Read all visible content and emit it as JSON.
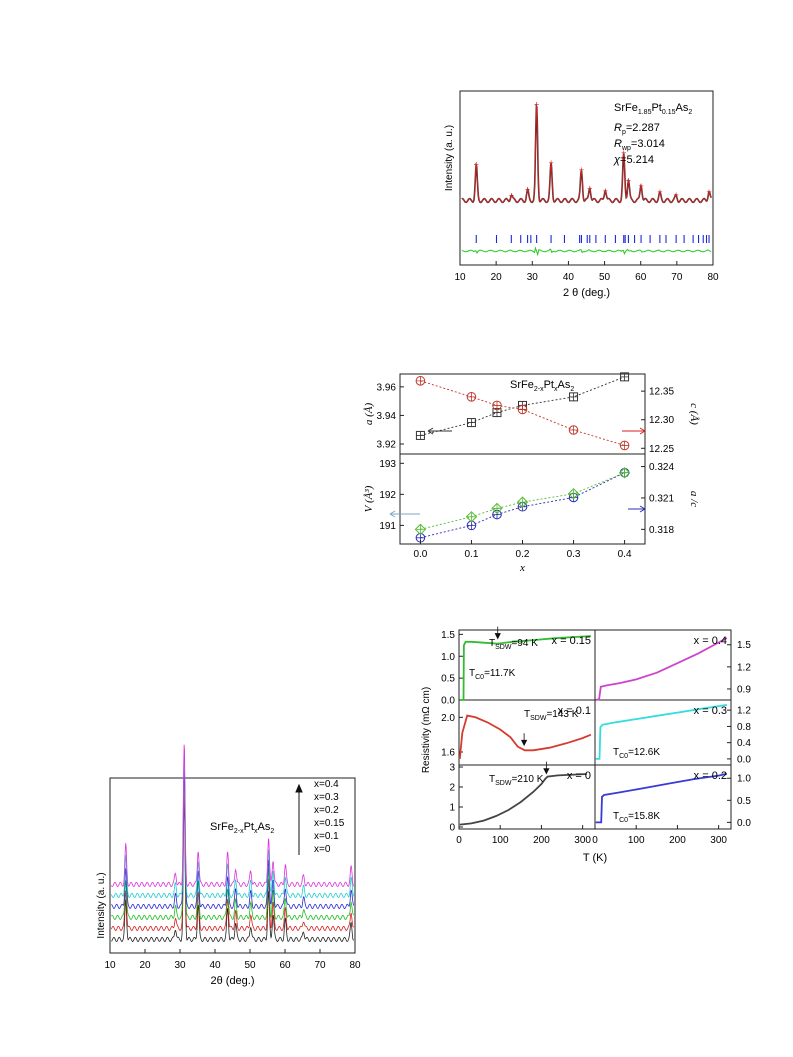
{
  "chart_data": [
    {
      "id": "rietveld",
      "type": "line",
      "title_formula": {
        "base": "SrFe",
        "s1": "1.85",
        "mid": "Pt",
        "s2": "0.15",
        "end": "As",
        "s3": "2"
      },
      "stats": [
        {
          "sym": "R",
          "sub": "p",
          "val": "=2.287"
        },
        {
          "sym": "R",
          "sub": "wp",
          "val": "=3.014"
        },
        {
          "sym": "χ",
          "sub": "",
          "val": "=5.214"
        }
      ],
      "xlabel": "2 θ (deg.)",
      "ylabel": "Intensity (a. u.)",
      "xlim": [
        10,
        80
      ],
      "xticks": [
        "10",
        "20",
        "30",
        "40",
        "50",
        "60",
        "70",
        "80"
      ],
      "xtick_values": [
        10,
        20,
        30,
        40,
        50,
        60,
        70,
        80
      ],
      "peaks": [
        {
          "x": 14.5,
          "h": 0.36
        },
        {
          "x": 24.2,
          "h": 0.06
        },
        {
          "x": 28.7,
          "h": 0.1
        },
        {
          "x": 31.2,
          "h": 1.0
        },
        {
          "x": 35.2,
          "h": 0.38
        },
        {
          "x": 43.6,
          "h": 0.32
        },
        {
          "x": 45.9,
          "h": 0.14
        },
        {
          "x": 50.2,
          "h": 0.12
        },
        {
          "x": 55.3,
          "h": 0.48
        },
        {
          "x": 56.6,
          "h": 0.22
        },
        {
          "x": 60.1,
          "h": 0.17
        },
        {
          "x": 65.3,
          "h": 0.07
        },
        {
          "x": 69.8,
          "h": 0.05
        },
        {
          "x": 78.9,
          "h": 0.1
        }
      ],
      "bragg_ticks": [
        14.5,
        20.1,
        24.2,
        26.8,
        28.7,
        29.6,
        31.2,
        35.2,
        38.9,
        43.1,
        43.6,
        45.2,
        45.9,
        47.6,
        50.2,
        53.0,
        55.3,
        55.7,
        56.6,
        58.3,
        60.1,
        62.6,
        65.3,
        67.0,
        69.8,
        72.0,
        74.5,
        76.0,
        77.3,
        78.2,
        78.9
      ],
      "colors": {
        "obs": "#333333",
        "calc": "#d62020",
        "diff": "#22cc22",
        "bragg": "#1a2ad6"
      }
    },
    {
      "id": "lattice",
      "type": "scatter",
      "title_formula": {
        "base": "SrFe",
        "s1": "2-x",
        "mid": "Pt",
        "s2": "x",
        "end": "As",
        "s3": "2"
      },
      "x": [
        0.0,
        0.1,
        0.15,
        0.2,
        0.3,
        0.4
      ],
      "xlabel": "x",
      "xlim": [
        -0.04,
        0.44
      ],
      "xticks": [
        "0.0",
        "0.1",
        "0.2",
        "0.3",
        "0.4"
      ],
      "xtick_values": [
        0.0,
        0.1,
        0.2,
        0.3,
        0.4
      ],
      "top": {
        "ylabel_left": "a (Å)",
        "ylim_left": [
          3.913,
          3.969
        ],
        "yticks_left": [
          "3.92",
          "3.94",
          "3.96"
        ],
        "ytick_values_left": [
          3.92,
          3.94,
          3.96
        ],
        "ylabel_right": "c (Å)",
        "ylim_right": [
          12.24,
          12.38
        ],
        "yticks_right": [
          "12.25",
          "12.30",
          "12.35"
        ],
        "ytick_values_right": [
          12.25,
          12.3,
          12.35
        ],
        "series": [
          {
            "name": "a",
            "axis": "left",
            "values": [
              3.926,
              3.935,
              3.942,
              3.947,
              3.953,
              3.967
            ],
            "color": "#333333",
            "marker": "square"
          },
          {
            "name": "c",
            "axis": "right",
            "values": [
              12.368,
              12.34,
              12.325,
              12.318,
              12.282,
              12.255
            ],
            "color": "#c0392b",
            "marker": "circle"
          }
        ]
      },
      "bottom": {
        "ylabel_left": "V (Å³)",
        "ylim_left": [
          190.4,
          193.3
        ],
        "yticks_left": [
          "191",
          "192",
          "193"
        ],
        "ytick_values_left": [
          191,
          192,
          193
        ],
        "ylabel_right": "a /c",
        "ylim_right": [
          0.3166,
          0.3252
        ],
        "yticks_right": [
          "0.318",
          "0.321",
          "0.324"
        ],
        "ytick_values_right": [
          0.318,
          0.321,
          0.324
        ],
        "series": [
          {
            "name": "V",
            "axis": "left",
            "values": [
              190.6,
              191.0,
              191.35,
              191.6,
              191.9,
              192.7
            ],
            "color": "#2d2db5",
            "marker": "circle"
          },
          {
            "name": "a/c",
            "axis": "right",
            "values": [
              0.318,
              0.3192,
              0.32,
              0.3206,
              0.3214,
              0.3234
            ],
            "color": "#55bb33",
            "marker": "diamond"
          }
        ]
      }
    },
    {
      "id": "xrd-series",
      "type": "line",
      "title_formula": {
        "base": "SrFe",
        "s1": "2-x",
        "mid": "Pt",
        "s2": "x",
        "end": "As",
        "s3": "2"
      },
      "xlabel": "2θ (deg.)",
      "ylabel": "Intensity (a. u.)",
      "xlim": [
        10,
        80
      ],
      "xticks": [
        "10",
        "20",
        "30",
        "40",
        "50",
        "60",
        "70",
        "80"
      ],
      "xtick_values": [
        10,
        20,
        30,
        40,
        50,
        60,
        70,
        80
      ],
      "legend": [
        "x=0.4",
        "x=0.3",
        "x=0.2",
        "x=0.15",
        "x=0.1",
        "x=0"
      ],
      "series": [
        {
          "name": "x=0",
          "color": "#222222"
        },
        {
          "name": "x=0.1",
          "color": "#d62020"
        },
        {
          "name": "x=0.15",
          "color": "#22bb22"
        },
        {
          "name": "x=0.2",
          "color": "#2a2ad6"
        },
        {
          "name": "x=0.3",
          "color": "#22cccc"
        },
        {
          "name": "x=0.4",
          "color": "#dd33dd"
        }
      ],
      "peaks": [
        {
          "x": 14.5,
          "h": 0.28
        },
        {
          "x": 28.7,
          "h": 0.08
        },
        {
          "x": 31.2,
          "h": 1.0
        },
        {
          "x": 35.2,
          "h": 0.25
        },
        {
          "x": 43.6,
          "h": 0.22
        },
        {
          "x": 45.9,
          "h": 0.12
        },
        {
          "x": 50.2,
          "h": 0.1
        },
        {
          "x": 55.3,
          "h": 0.34
        },
        {
          "x": 56.6,
          "h": 0.18
        },
        {
          "x": 60.1,
          "h": 0.14
        },
        {
          "x": 65.3,
          "h": 0.06
        },
        {
          "x": 78.9,
          "h": 0.12
        }
      ]
    },
    {
      "id": "resistivity",
      "type": "line",
      "ylabel": "Resistivity (mΩ cm)",
      "xlabel": "T (K)",
      "xlim": [
        0,
        330
      ],
      "xticks": [
        "0",
        "100",
        "200",
        "300"
      ],
      "xtick_values": [
        0,
        100,
        200,
        300
      ],
      "panels": [
        {
          "id": "x015",
          "label": "x = 0.15",
          "ylim": [
            0.0,
            1.6
          ],
          "yticks": [
            "0.0",
            "0.5",
            "1.0",
            "1.5"
          ],
          "ytick_values": [
            0.0,
            0.5,
            1.0,
            1.5
          ],
          "tick_side": "left",
          "color": "#33bb33",
          "t": [
            2,
            11,
            12,
            16,
            30,
            60,
            94,
            130,
            180,
            230,
            280,
            320
          ],
          "r": [
            0.0,
            0.0,
            1.25,
            1.33,
            1.33,
            1.31,
            1.29,
            1.33,
            1.37,
            1.41,
            1.44,
            1.46
          ],
          "texts": [
            {
              "kind": "TSDW",
              "value": "=94 K"
            },
            {
              "kind": "TC0",
              "value": "=11.7K"
            }
          ],
          "arrow_t": 94
        },
        {
          "id": "x04",
          "label": "x = 0.4",
          "ylim": [
            0.75,
            1.7
          ],
          "yticks": [
            "0.9",
            "1.2",
            "1.5"
          ],
          "ytick_values": [
            0.9,
            1.2,
            1.5
          ],
          "tick_side": "right",
          "color": "#cc44cc",
          "t": [
            2,
            10,
            14,
            30,
            60,
            100,
            150,
            200,
            250,
            300,
            320
          ],
          "r": [
            0.75,
            0.76,
            0.93,
            0.95,
            0.98,
            1.03,
            1.12,
            1.25,
            1.38,
            1.53,
            1.59
          ],
          "texts": []
        },
        {
          "id": "x01",
          "label": "x = 0.1",
          "ylim": [
            1.45,
            2.2
          ],
          "yticks": [
            "1.6",
            "2.0"
          ],
          "ytick_values": [
            1.6,
            2.0
          ],
          "tick_side": "left",
          "color": "#d63b2e",
          "t": [
            2,
            8,
            20,
            40,
            70,
            100,
            125,
            143,
            160,
            180,
            220,
            260,
            300,
            320
          ],
          "r": [
            1.52,
            1.82,
            2.02,
            2.0,
            1.94,
            1.86,
            1.77,
            1.66,
            1.62,
            1.62,
            1.65,
            1.7,
            1.76,
            1.8
          ],
          "texts": [
            {
              "kind": "TSDW",
              "value": "=143 K"
            }
          ],
          "arrow_t": 158
        },
        {
          "id": "x03",
          "label": "x = 0.3",
          "ylim": [
            -0.15,
            1.45
          ],
          "yticks": [
            "0.0",
            "0.4",
            "0.8",
            "1.2"
          ],
          "ytick_values": [
            0.0,
            0.4,
            0.8,
            1.2
          ],
          "tick_side": "right",
          "color": "#33dddd",
          "t": [
            2,
            11,
            13,
            18,
            50,
            100,
            150,
            200,
            250,
            300,
            320
          ],
          "r": [
            0.0,
            0.0,
            0.78,
            0.84,
            0.9,
            0.98,
            1.06,
            1.14,
            1.22,
            1.3,
            1.33
          ],
          "texts": [
            {
              "kind": "TC0",
              "value": "=12.6K"
            }
          ]
        },
        {
          "id": "x0",
          "label": "x = 0",
          "ylim": [
            -0.1,
            3.1
          ],
          "yticks": [
            "0",
            "1",
            "2",
            "3"
          ],
          "ytick_values": [
            0,
            1,
            2,
            3
          ],
          "tick_side": "left",
          "color": "#444444",
          "t": [
            2,
            30,
            60,
            90,
            120,
            150,
            180,
            200,
            210,
            215,
            240,
            280,
            310
          ],
          "r": [
            0.12,
            0.18,
            0.32,
            0.55,
            0.85,
            1.25,
            1.75,
            2.15,
            2.42,
            2.52,
            2.58,
            2.62,
            2.65
          ],
          "texts": [
            {
              "kind": "TSDW",
              "value": "=210 K"
            }
          ],
          "arrow_t": 212
        },
        {
          "id": "x02",
          "label": "x = 0.2",
          "ylim": [
            -0.15,
            1.3
          ],
          "yticks": [
            "0.0",
            "0.5",
            "1.0"
          ],
          "ytick_values": [
            0.0,
            0.5,
            1.0
          ],
          "tick_side": "right",
          "color": "#3a3ad6",
          "t": [
            2,
            15,
            17,
            22,
            60,
            120,
            180,
            240,
            300,
            320
          ],
          "r": [
            0.0,
            0.0,
            0.58,
            0.62,
            0.68,
            0.78,
            0.88,
            0.98,
            1.06,
            1.1
          ],
          "texts": [
            {
              "kind": "TC0",
              "value": "=15.8K"
            }
          ]
        }
      ]
    }
  ]
}
